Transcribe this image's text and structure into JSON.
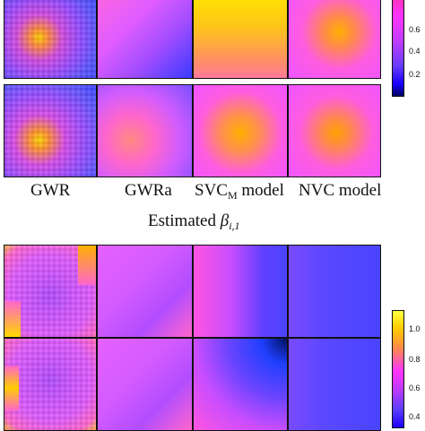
{
  "top": {
    "method_labels": [
      "GWR",
      "GWRa",
      "SVC",
      "NVC model"
    ],
    "svc_subscript": "M",
    "svc_suffix": " model",
    "caption_prefix": "Estimated ",
    "caption_symbol": "β",
    "caption_subscript": "i,1",
    "colorbar_ticks": [
      "0.6",
      "0.4",
      "0.2"
    ]
  },
  "bottom": {
    "colorbar_ticks": [
      "1.0",
      "0.8",
      "0.6",
      "0.4"
    ]
  },
  "colors": {
    "low": "#1a00ff",
    "mid": "#ff33ff",
    "high": "#ffcc00"
  }
}
